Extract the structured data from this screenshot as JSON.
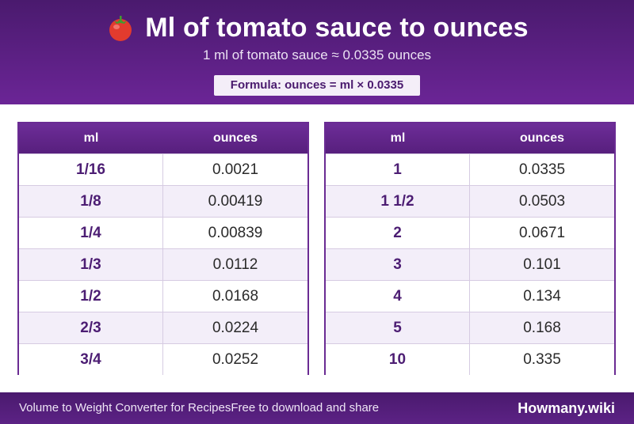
{
  "header": {
    "title": "Ml of tomato sauce to ounces",
    "subtitle": "1 ml of tomato sauce ≈ 0.0335 ounces",
    "formula": "Formula: ounces = ml × 0.0335",
    "icon": "tomato-icon"
  },
  "tables": [
    {
      "col_ml": "ml",
      "col_oz": "ounces",
      "rows": [
        {
          "ml": "1/16",
          "oz": "0.0021"
        },
        {
          "ml": "1/8",
          "oz": "0.00419"
        },
        {
          "ml": "1/4",
          "oz": "0.00839"
        },
        {
          "ml": "1/3",
          "oz": "0.0112"
        },
        {
          "ml": "1/2",
          "oz": "0.0168"
        },
        {
          "ml": "2/3",
          "oz": "0.0224"
        },
        {
          "ml": "3/4",
          "oz": "0.0252"
        }
      ]
    },
    {
      "col_ml": "ml",
      "col_oz": "ounces",
      "rows": [
        {
          "ml": "1",
          "oz": "0.0335"
        },
        {
          "ml": "1 1/2",
          "oz": "0.0503"
        },
        {
          "ml": "2",
          "oz": "0.0671"
        },
        {
          "ml": "3",
          "oz": "0.101"
        },
        {
          "ml": "4",
          "oz": "0.134"
        },
        {
          "ml": "5",
          "oz": "0.168"
        },
        {
          "ml": "10",
          "oz": "0.335"
        }
      ]
    }
  ],
  "footer": {
    "left_a": "Volume to Weight Converter for Recipes",
    "left_b": "Free to download and share",
    "brand": "Howmany.wiki"
  },
  "colors": {
    "brand_purple": "#4a1a6e",
    "header_purple": "#6b2596",
    "stripe": "#f3eef9"
  }
}
